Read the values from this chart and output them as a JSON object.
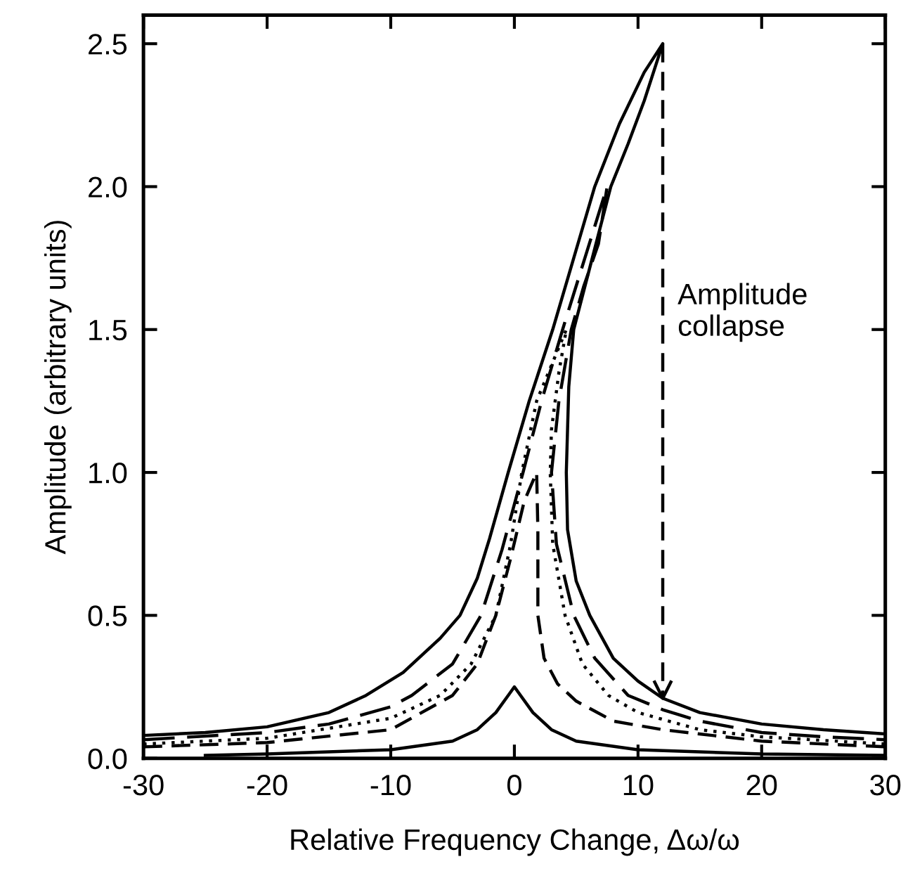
{
  "chart_data": {
    "type": "line",
    "xlabel": "Relative Frequency Change, Δω/ω",
    "ylabel": "Amplitude (arbitrary units)",
    "xlim": [
      -30,
      30
    ],
    "xticks": [
      -30,
      -20,
      -10,
      0,
      10,
      20,
      30
    ],
    "ylim": [
      0,
      2.6
    ],
    "yticks": [
      {
        "value": 0,
        "label": "0.0"
      },
      {
        "value": 0.5,
        "label": "0.5"
      },
      {
        "value": 1,
        "label": "1.0"
      },
      {
        "value": 1.5,
        "label": "1.5"
      },
      {
        "value": 2,
        "label": "2.0"
      },
      {
        "value": 2.5,
        "label": "2.5"
      }
    ],
    "grid": false,
    "marker": "none",
    "series": [
      {
        "color": "#000000",
        "line_style": "solid",
        "x": [
          -25,
          -20,
          -10,
          -5,
          -3,
          -1.5,
          -0.5,
          0,
          0.5,
          1.5,
          3,
          5,
          10,
          20,
          30
        ],
        "values": [
          0.01,
          0.015,
          0.03,
          0.06,
          0.1,
          0.16,
          0.22,
          0.25,
          0.22,
          0.16,
          0.1,
          0.06,
          0.03,
          0.015,
          0.01
        ]
      },
      {
        "color": "#000000",
        "line_style": "dashed",
        "x": [
          -30,
          -20,
          -10,
          -5,
          -3,
          -1.5,
          -0.3,
          0.8,
          1.8,
          1.9,
          1.9,
          2.4,
          3.5,
          5,
          8,
          12,
          20,
          30
        ],
        "values": [
          0.04,
          0.055,
          0.1,
          0.22,
          0.33,
          0.5,
          0.7,
          0.9,
          1.0,
          0.8,
          0.5,
          0.35,
          0.26,
          0.2,
          0.13,
          0.1,
          0.06,
          0.04
        ]
      },
      {
        "color": "#000000",
        "line_style": "dotted",
        "x": [
          -30,
          -20,
          -10,
          -6,
          -3.5,
          -1.5,
          -0.3,
          0.6,
          1.8,
          4.2,
          3.6,
          3.0,
          2.9,
          3.1,
          4.1,
          5.5,
          7.6,
          10,
          15,
          20,
          30
        ],
        "values": [
          0.05,
          0.07,
          0.14,
          0.22,
          0.33,
          0.5,
          0.75,
          1.0,
          1.25,
          1.5,
          1.35,
          1.15,
          1.0,
          0.75,
          0.5,
          0.33,
          0.22,
          0.16,
          0.1,
          0.075,
          0.05
        ]
      },
      {
        "color": "#000000",
        "line_style": "longdash",
        "x": [
          -30,
          -20,
          -15,
          -10,
          -8.3,
          -5,
          -2.7,
          -1,
          0.7,
          2.2,
          3.9,
          5.7,
          7.5,
          6.8,
          5.6,
          4.6,
          3.6,
          3.0,
          3.4,
          4.8,
          6.5,
          9.2,
          12,
          15,
          20,
          25,
          30
        ],
        "values": [
          0.065,
          0.09,
          0.12,
          0.18,
          0.22,
          0.33,
          0.5,
          0.73,
          1.0,
          1.25,
          1.5,
          1.75,
          2.0,
          1.8,
          1.65,
          1.5,
          1.25,
          1.0,
          0.75,
          0.5,
          0.35,
          0.22,
          0.17,
          0.13,
          0.09,
          0.075,
          0.065
        ]
      },
      {
        "color": "#000000",
        "line_style": "solid",
        "x": [
          -30,
          -25,
          -20,
          -15,
          -12,
          -9,
          -6,
          -4.4,
          -3,
          -2,
          -0.5,
          1.2,
          3.1,
          4.8,
          6.5,
          8.5,
          10.5,
          12,
          10.5,
          9.2,
          7.8,
          6.3,
          4.8,
          4.4,
          4.2,
          4.3,
          5,
          6.1,
          8,
          10,
          12,
          15,
          20,
          25,
          30
        ],
        "values": [
          0.08,
          0.09,
          0.11,
          0.16,
          0.22,
          0.3,
          0.42,
          0.5,
          0.63,
          0.77,
          1.0,
          1.25,
          1.5,
          1.75,
          2.0,
          2.22,
          2.4,
          2.5,
          2.3,
          2.15,
          2.0,
          1.75,
          1.5,
          1.3,
          1.0,
          0.8,
          0.62,
          0.5,
          0.35,
          0.27,
          0.21,
          0.16,
          0.12,
          0.1,
          0.085
        ]
      },
      {
        "type": "line",
        "color": "#000000",
        "line_style": "dashed",
        "x": [
          12,
          12
        ],
        "values": [
          2.5,
          0.21
        ]
      }
    ],
    "annotations": [
      "Amplitude\ncollapse"
    ]
  }
}
